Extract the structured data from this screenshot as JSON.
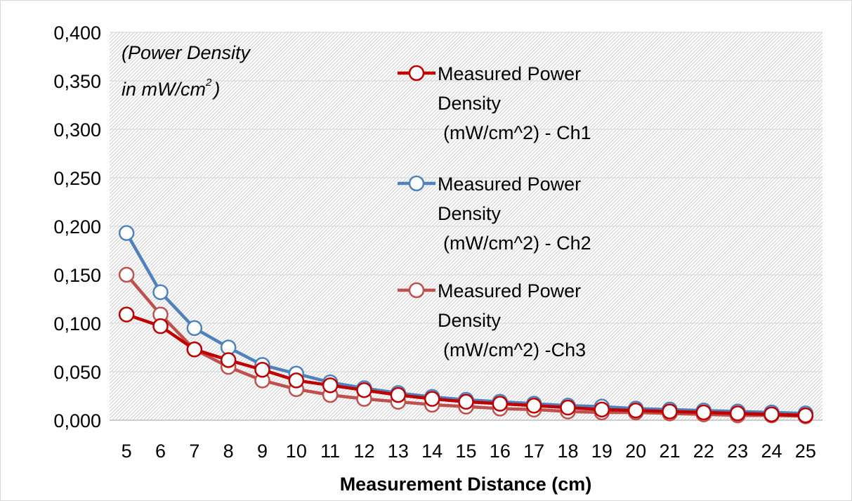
{
  "chart_data": {
    "type": "line",
    "xlabel": "Measurement Distance (cm)",
    "ylabel": "",
    "annotation": {
      "line1": "(Power Density",
      "line2_text": "in mW/cm",
      "superscript": "2",
      "line2_close": ")"
    },
    "x": [
      5,
      6,
      7,
      8,
      9,
      10,
      11,
      12,
      13,
      14,
      15,
      16,
      17,
      18,
      19,
      20,
      21,
      22,
      23,
      24,
      25
    ],
    "ylim": [
      0,
      0.4
    ],
    "yticks": [
      "0,000",
      "0,050",
      "0,100",
      "0,150",
      "0,200",
      "0,250",
      "0,300",
      "0,350",
      "0,400"
    ],
    "grid": true,
    "legend_position": "top-right",
    "series": [
      {
        "name_lines": [
          "Measured Power",
          "Density",
          " (mW/cm^2) - Ch1"
        ],
        "color": "#c00000",
        "values": [
          0.109,
          0.097,
          0.073,
          0.062,
          0.052,
          0.041,
          0.036,
          0.031,
          0.026,
          0.022,
          0.019,
          0.017,
          0.015,
          0.013,
          0.011,
          0.01,
          0.009,
          0.008,
          0.007,
          0.006,
          0.005
        ]
      },
      {
        "name_lines": [
          "Measured Power",
          "Density",
          "  (mW/cm^2) - Ch2"
        ],
        "color": "#4f81bd",
        "values": [
          0.193,
          0.132,
          0.095,
          0.075,
          0.057,
          0.048,
          0.039,
          0.033,
          0.028,
          0.024,
          0.021,
          0.019,
          0.017,
          0.015,
          0.014,
          0.012,
          0.011,
          0.01,
          0.009,
          0.008,
          0.007
        ]
      },
      {
        "name_lines": [
          "Measured Power",
          "Density",
          " (mW/cm^2) -Ch3"
        ],
        "color": "#c0504d",
        "values": [
          0.15,
          0.109,
          0.073,
          0.055,
          0.041,
          0.032,
          0.026,
          0.022,
          0.019,
          0.016,
          0.014,
          0.012,
          0.011,
          0.009,
          0.008,
          0.008,
          0.007,
          0.006,
          0.005,
          0.005,
          0.004
        ]
      }
    ]
  }
}
